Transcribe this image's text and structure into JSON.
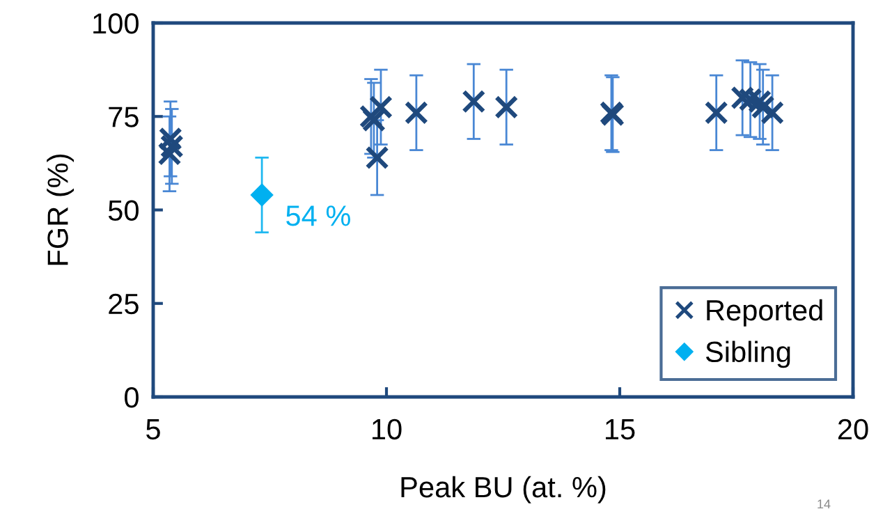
{
  "chart_data": {
    "type": "scatter",
    "xlabel": "Peak BU (at. %)",
    "ylabel": "FGR (%)",
    "xlim": [
      5,
      20
    ],
    "xticks": [
      5,
      10,
      15,
      20
    ],
    "ylim": [
      0,
      100
    ],
    "yticks": [
      0,
      25,
      50,
      75,
      100
    ],
    "grid": false,
    "legend": "bottom right",
    "series": [
      {
        "name": "Reported",
        "color": "#1f497d",
        "marker": "cross",
        "x": [
          5.37,
          5.4,
          5.35,
          9.67,
          9.73,
          9.88,
          9.8,
          10.64,
          11.87,
          12.57,
          14.82,
          14.85,
          17.07,
          17.63,
          17.8,
          18.0,
          18.07,
          18.27
        ],
        "values": [
          69,
          67,
          65,
          75,
          74,
          77.5,
          64,
          76,
          79,
          77.5,
          76,
          75.5,
          76,
          80,
          79.5,
          79,
          77.5,
          76
        ],
        "errors": [
          10,
          10,
          10,
          10,
          10,
          10,
          10,
          10,
          10,
          10,
          10,
          10,
          10,
          10,
          10,
          10,
          10,
          10
        ]
      },
      {
        "name": "Sibling",
        "color": "#00b0f0",
        "marker": "diamond",
        "x": [
          7.33
        ],
        "values": [
          54
        ],
        "errors": [
          10
        ]
      }
    ],
    "annotations": [
      {
        "text": "54 %",
        "x": 7.33,
        "y": 54
      },
      "14"
    ]
  }
}
